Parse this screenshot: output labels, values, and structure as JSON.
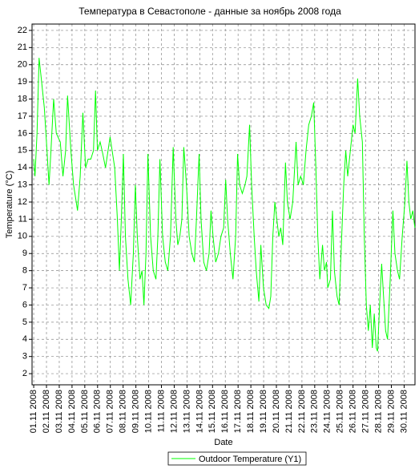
{
  "chart_data": {
    "type": "line",
    "title": "Температура в Севастополе - данные за ноябрь 2008 года",
    "x_label": "Date",
    "y_label": "Temperature (°C)",
    "x": [
      1.0,
      1.1,
      1.26,
      1.42,
      1.62,
      1.83,
      2.04,
      2.2,
      2.35,
      2.56,
      2.77,
      3.08,
      3.29,
      3.5,
      3.65,
      3.91,
      4.12,
      4.33,
      4.43,
      4.64,
      4.85,
      5.06,
      5.26,
      5.47,
      5.68,
      5.84,
      5.99,
      6.2,
      6.41,
      6.62,
      6.82,
      6.98,
      7.14,
      7.34,
      7.55,
      7.71,
      7.86,
      8.02,
      8.18,
      8.38,
      8.59,
      8.8,
      8.96,
      9.11,
      9.32,
      9.48,
      9.63,
      9.79,
      9.94,
      10.15,
      10.36,
      10.57,
      10.72,
      10.88,
      11.09,
      11.3,
      11.5,
      11.71,
      11.92,
      12.13,
      12.28,
      12.44,
      12.6,
      12.75,
      12.96,
      13.17,
      13.38,
      13.58,
      13.74,
      13.95,
      14.1,
      14.31,
      14.52,
      14.73,
      14.88,
      15.04,
      15.25,
      15.46,
      15.66,
      15.87,
      16.03,
      16.18,
      16.39,
      16.6,
      16.81,
      16.96,
      17.12,
      17.33,
      17.54,
      17.69,
      17.9,
      18.06,
      18.26,
      18.42,
      18.63,
      18.78,
      18.99,
      19.2,
      19.41,
      19.56,
      19.72,
      19.88,
      20.03,
      20.19,
      20.34,
      20.5,
      20.71,
      20.86,
      21.07,
      21.28,
      21.54,
      21.7,
      21.9,
      22.11,
      22.32,
      22.53,
      22.74,
      22.92,
      23.09,
      23.24,
      23.4,
      23.61,
      23.76,
      23.92,
      24.02,
      24.23,
      24.39,
      24.54,
      24.75,
      24.91,
      25.06,
      25.27,
      25.43,
      25.58,
      25.79,
      26.0,
      26.16,
      26.36,
      26.52,
      26.73,
      26.88,
      27.04,
      27.2,
      27.35,
      27.51,
      27.66,
      27.82,
      27.92,
      28.08,
      28.24,
      28.39,
      28.55,
      28.7,
      28.91,
      29.12,
      29.28,
      29.48,
      29.64,
      29.85,
      30.06,
      30.22,
      30.37,
      30.52,
      30.68,
      30.84
    ],
    "series": [
      {
        "name": "Outdoor Temperature (Y1)",
        "color": "#00ff00",
        "values": [
          14.5,
          13.5,
          16,
          20.4,
          19,
          17.5,
          15,
          13,
          15,
          18,
          16,
          15.5,
          13.5,
          15,
          18.2,
          15,
          13,
          12,
          11.5,
          13.5,
          17.2,
          14,
          14.5,
          14.5,
          15,
          18.5,
          15,
          15.5,
          14.8,
          14,
          15,
          15.8,
          15,
          14,
          11,
          8,
          11,
          14.8,
          10,
          7.5,
          6,
          9,
          13,
          10,
          7.5,
          8,
          6,
          9,
          14.8,
          10,
          8,
          7.5,
          10,
          14.5,
          10,
          8.5,
          8,
          10,
          15.2,
          11,
          9.5,
          10,
          11,
          15.2,
          13,
          10,
          9,
          8.5,
          11,
          14.8,
          11,
          8.5,
          8,
          9,
          11.5,
          10,
          8.5,
          9,
          10,
          10.5,
          13.3,
          11,
          9,
          7.5,
          10,
          14.8,
          13,
          12.5,
          13,
          13.5,
          16.5,
          13,
          10,
          8,
          6.2,
          9.5,
          7,
          6,
          5.8,
          6.5,
          10,
          12,
          11,
          10,
          10.5,
          9.5,
          14.3,
          12,
          11,
          12,
          15.5,
          13,
          13.5,
          13,
          15,
          16.5,
          17,
          17.8,
          14,
          10,
          7.5,
          9.5,
          8,
          8.5,
          7,
          7.5,
          11.5,
          8,
          6.5,
          6,
          9,
          13,
          15,
          13.5,
          15,
          16.5,
          16,
          19.2,
          17,
          15.5,
          10,
          6,
          4.5,
          6,
          3.5,
          5.5,
          3.5,
          3.3,
          6,
          8.4,
          6.5,
          4.5,
          4,
          7.5,
          11.5,
          9,
          8,
          7.5,
          10,
          12,
          14.4,
          12,
          11,
          11.5,
          10.5
        ]
      }
    ],
    "xlim": [
      0.87,
      30.85
    ],
    "ylim": [
      1.35,
      22.37
    ],
    "yticks": [
      2,
      3,
      4,
      5,
      6,
      7,
      8,
      9,
      10,
      11,
      12,
      13,
      14,
      15,
      16,
      17,
      18,
      19,
      20,
      21,
      22
    ],
    "xticks": [
      {
        "value": 1,
        "label": "01.11 2008"
      },
      {
        "value": 2,
        "label": "02.11 2008"
      },
      {
        "value": 3,
        "label": "03.11 2008"
      },
      {
        "value": 4,
        "label": "04.11 2008"
      },
      {
        "value": 5,
        "label": "05.11 2008"
      },
      {
        "value": 6,
        "label": "06.11 2008"
      },
      {
        "value": 7,
        "label": "07.11 2008"
      },
      {
        "value": 8,
        "label": "08.11 2008"
      },
      {
        "value": 9,
        "label": "09.11 2008"
      },
      {
        "value": 10,
        "label": "10.11 2008"
      },
      {
        "value": 11,
        "label": "11.11 2008"
      },
      {
        "value": 12,
        "label": "12.11 2008"
      },
      {
        "value": 13,
        "label": "13.11 2008"
      },
      {
        "value": 14,
        "label": "14.11 2008"
      },
      {
        "value": 15,
        "label": "15.11 2008"
      },
      {
        "value": 16,
        "label": "16.11 2008"
      },
      {
        "value": 17,
        "label": "17.11 2008"
      },
      {
        "value": 18,
        "label": "18.11 2008"
      },
      {
        "value": 19,
        "label": "19.11 2008"
      },
      {
        "value": 20,
        "label": "20.11 2008"
      },
      {
        "value": 21,
        "label": "21.11 2008"
      },
      {
        "value": 22,
        "label": "22.11 2008"
      },
      {
        "value": 23,
        "label": "23.11 2008"
      },
      {
        "value": 24,
        "label": "24.11 2008"
      },
      {
        "value": 25,
        "label": "25.11 2008"
      },
      {
        "value": 26,
        "label": "26.11 2008"
      },
      {
        "value": 27,
        "label": "27.11 2008"
      },
      {
        "value": 28,
        "label": "28.11 2008"
      },
      {
        "value": 29,
        "label": "29.11 2008"
      },
      {
        "value": 30,
        "label": "30.11 2008"
      }
    ],
    "grid": true
  }
}
